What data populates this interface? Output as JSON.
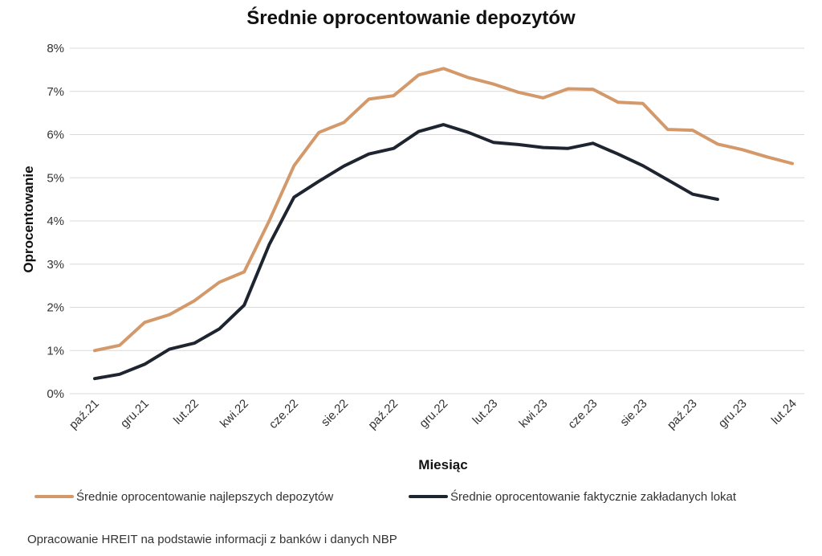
{
  "chart_data": {
    "type": "line",
    "title": "Średnie oprocentowanie depozytów",
    "xlabel": "Miesiąc",
    "ylabel": "Oprocentowanie",
    "ylim": [
      0,
      8
    ],
    "yticks": [
      "0%",
      "1%",
      "2%",
      "3%",
      "4%",
      "5%",
      "6%",
      "7%",
      "8%"
    ],
    "grid": true,
    "legend_position": "bottom",
    "x_tick_labels": [
      "paź.21",
      "gru.21",
      "lut.22",
      "kwi.22",
      "cze.22",
      "sie.22",
      "paź.22",
      "gru.22",
      "lut.23",
      "kwi.23",
      "cze.23",
      "sie.23",
      "paź.23",
      "gru.23",
      "lut.24"
    ],
    "x": [
      "paź.21",
      "lis.21",
      "gru.21",
      "sty.22",
      "lut.22",
      "mar.22",
      "kwi.22",
      "maj.22",
      "cze.22",
      "lip.22",
      "sie.22",
      "wrz.22",
      "paź.22",
      "lis.22",
      "gru.22",
      "sty.23",
      "lut.23",
      "mar.23",
      "kwi.23",
      "maj.23",
      "cze.23",
      "lip.23",
      "sie.23",
      "wrz.23",
      "paź.23",
      "lis.23",
      "gru.23",
      "sty.24",
      "lut.24"
    ],
    "series": [
      {
        "name": "Średnie oprocentowanie najlepszych depozytów",
        "color": "#D4996A",
        "values": [
          1.0,
          1.12,
          1.65,
          1.83,
          2.15,
          2.58,
          2.82,
          4.0,
          5.28,
          6.05,
          6.28,
          6.82,
          6.9,
          7.38,
          7.53,
          7.32,
          7.17,
          6.98,
          6.85,
          7.06,
          7.05,
          6.75,
          6.72,
          6.12,
          6.1,
          5.78,
          5.65,
          5.48,
          5.33
        ]
      },
      {
        "name": "Średnie oprocentowanie faktycznie zakładanych lokat",
        "color": "#1F2530",
        "values": [
          0.35,
          0.45,
          0.68,
          1.03,
          1.17,
          1.5,
          2.05,
          3.45,
          4.55,
          4.92,
          5.27,
          5.55,
          5.68,
          6.07,
          6.23,
          6.05,
          5.82,
          5.77,
          5.7,
          5.68,
          5.8,
          5.55,
          5.28,
          4.95,
          4.62,
          4.5,
          null,
          null,
          null
        ]
      }
    ]
  },
  "footer": {
    "source_note": "Opracowanie HREIT na podstawie informacji z banków i danych NBP"
  }
}
